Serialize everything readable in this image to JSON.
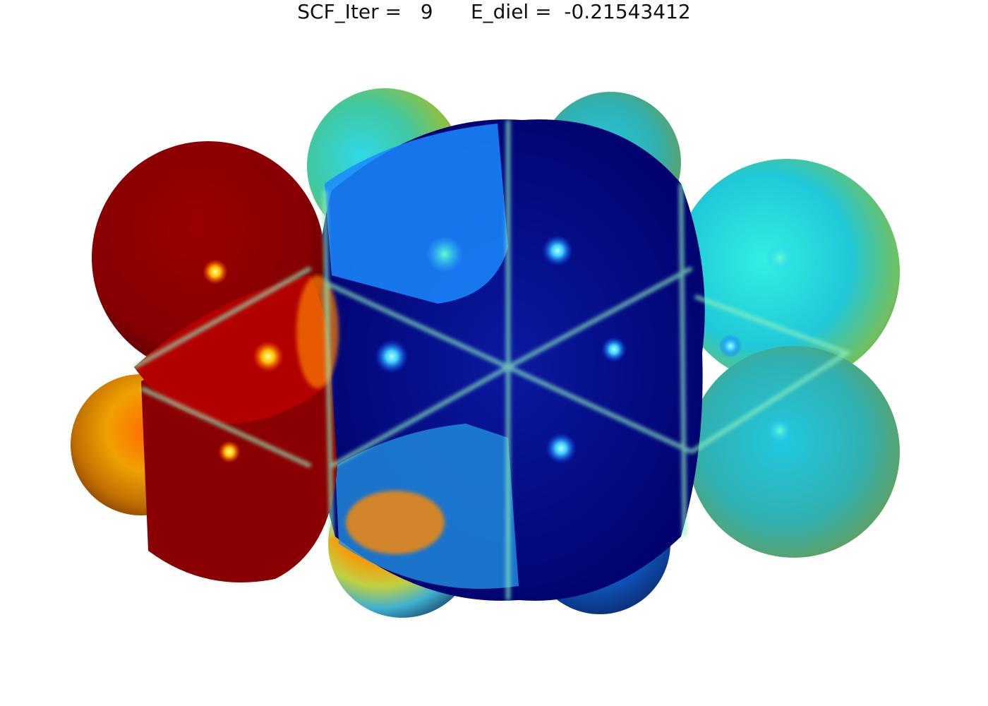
{
  "header": {
    "iter_label": "SCF_Iter =",
    "iter_value": "9",
    "energy_label": "E_diel =",
    "energy_value": "-0.21543412"
  },
  "colormap": [
    "#00007f",
    "#0000ff",
    "#007fff",
    "#00ffff",
    "#7fff7f",
    "#ffff00",
    "#ff7f00",
    "#ff0000",
    "#7f0000"
  ],
  "surface_colors": {
    "negative_region": "#8b0000",
    "positive_region": "#00008b",
    "neutral_region": "#2ee6d0"
  }
}
